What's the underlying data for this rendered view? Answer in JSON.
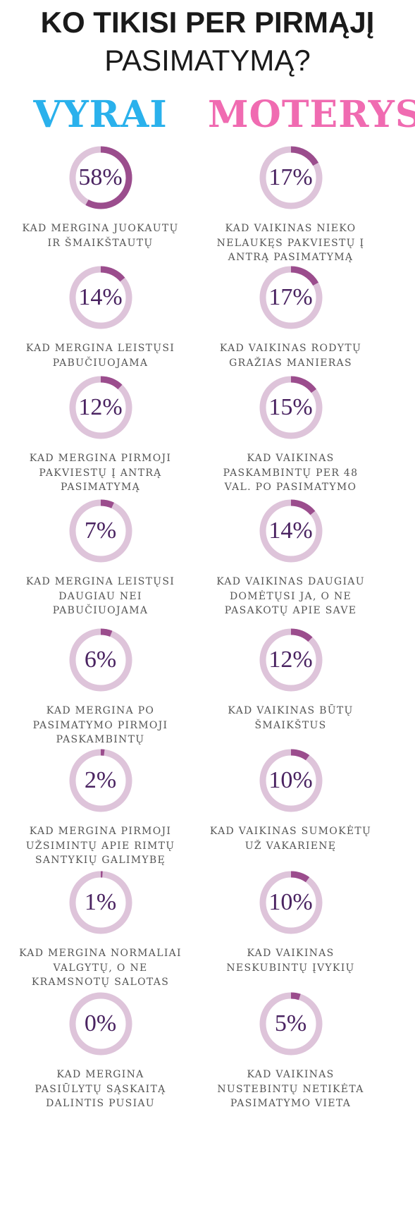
{
  "title": {
    "line1": "KO TIKISI PER PIRMĄJĮ",
    "line2": "PASIMATYMĄ?"
  },
  "colors": {
    "men_heading": "#2ab1ec",
    "women_heading": "#f06bb1",
    "ring_track": "#dec4da",
    "ring_fill": "#9b4d8d",
    "percent_text": "#4a2361"
  },
  "chart_data": [
    {
      "type": "pie",
      "title": "VYRAI",
      "values": [
        58,
        14,
        12,
        7,
        6,
        2,
        1,
        0
      ],
      "labels": [
        "58%",
        "14%",
        "12%",
        "7%",
        "6%",
        "2%",
        "1%",
        "0%"
      ],
      "categories": [
        "KAD MERGINA JUOKAUTŲ IR ŠMAIKŠTAUTŲ",
        "KAD MERGINA LEISTŲSI PABUČIUOJAMA",
        "KAD MERGINA PIRMOJI PAKVIESTŲ Į ANTRĄ PASIMATYMĄ",
        "KAD MERGINA LEISTŲSI DAUGIAU NEI PABUČIUOJAMA",
        "KAD MERGINA PO PASIMATYMO PIRMOJI PASKAMBINTŲ",
        "KAD MERGINA PIRMOJI UŽSIMINTŲ APIE RIMTŲ SANTYKIŲ GALIMYBĘ",
        "KAD MERGINA NORMALIAI VALGYTŲ, O NE KRAMSNOTŲ SALOTAS",
        "KAD MERGINA PASIŪLYTŲ SĄSKAITĄ DALINTIS PUSIAU"
      ],
      "lines": [
        [
          "KAD MERGINA JUOKAUTŲ",
          "IR ŠMAIKŠTAUTŲ"
        ],
        [
          "KAD MERGINA LEISTŲSI",
          "PABUČIUOJAMA"
        ],
        [
          "KAD MERGINA PIRMOJI",
          "PAKVIESTŲ Į ANTRĄ",
          "PASIMATYMĄ"
        ],
        [
          "KAD MERGINA LEISTŲSI",
          "DAUGIAU NEI",
          "PABUČIUOJAMA"
        ],
        [
          "KAD MERGINA PO",
          "PASIMATYMO PIRMOJI",
          "PASKAMBINTŲ"
        ],
        [
          "KAD MERGINA PIRMOJI",
          "UŽSIMINTŲ APIE RIMTŲ",
          "SANTYKIŲ GALIMYBĘ"
        ],
        [
          "KAD MERGINA NORMALIAI",
          "VALGYTŲ, O NE",
          "KRAMSNOTŲ SALOTAS"
        ],
        [
          "KAD MERGINA",
          "PASIŪLYTŲ SĄSKAITĄ",
          "DALINTIS PUSIAU"
        ]
      ]
    },
    {
      "type": "pie",
      "title": "MOTERYS",
      "values": [
        17,
        17,
        15,
        14,
        12,
        10,
        10,
        5
      ],
      "labels": [
        "17%",
        "17%",
        "15%",
        "14%",
        "12%",
        "10%",
        "10%",
        "5%"
      ],
      "categories": [
        "KAD VAIKINAS NIEKO NELAUKĘS PAKVIESTŲ Į ANTRĄ PASIMATYMĄ",
        "KAD VAIKINAS RODYTŲ GRAŽIAS MANIERAS",
        "KAD VAIKINAS PASKAMBINTŲ PER 48 VAL. PO PASIMATYMO",
        "KAD VAIKINAS DAUGIAU DOMĖTŲSI JA, O NE PASAKOTŲ APIE SAVE",
        "KAD VAIKINAS BŪTŲ ŠMAIKŠTUS",
        "KAD VAIKINAS SUMOKĖTŲ UŽ VAKARIENĘ",
        "KAD VAIKINAS NESKUBINTŲ ĮVYKIŲ",
        "KAD VAIKINAS NUSTEBINTŲ NETIKĖTA PASIMATYMO VIETA"
      ],
      "lines": [
        [
          "KAD VAIKINAS NIEKO",
          "NELAUKĘS PAKVIESTŲ Į",
          "ANTRĄ PASIMATYMĄ"
        ],
        [
          "KAD VAIKINAS RODYTŲ",
          "GRAŽIAS MANIERAS"
        ],
        [
          "KAD VAIKINAS",
          "PASKAMBINTŲ PER 48",
          "VAL. PO PASIMATYMO"
        ],
        [
          "KAD VAIKINAS DAUGIAU",
          "DOMĖTŲSI JA, O NE",
          "PASAKOTŲ APIE SAVE"
        ],
        [
          "KAD VAIKINAS BŪTŲ",
          "ŠMAIKŠTUS"
        ],
        [
          "KAD VAIKINAS SUMOKĖTŲ",
          "UŽ VAKARIENĘ"
        ],
        [
          "KAD VAIKINAS",
          "NESKUBINTŲ ĮVYKIŲ"
        ],
        [
          "KAD VAIKINAS",
          "NUSTEBINTŲ NETIKĖTA",
          "PASIMATYMO VIETA"
        ]
      ]
    }
  ]
}
